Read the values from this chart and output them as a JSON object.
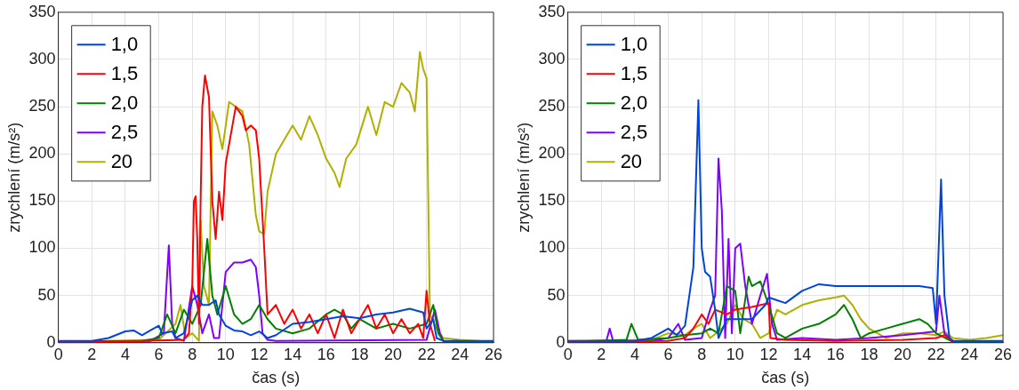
{
  "chart_data": [
    {
      "type": "line",
      "xlabel": "čas (s)",
      "ylabel": "zrychlení (m/s²)",
      "xlim": [
        0,
        26
      ],
      "xticks": [
        0,
        2,
        4,
        6,
        8,
        10,
        12,
        14,
        16,
        18,
        20,
        22,
        24,
        26
      ],
      "ylim": [
        0,
        350
      ],
      "yticks": [
        0,
        50,
        100,
        150,
        200,
        250,
        300,
        350
      ],
      "grid": true,
      "legend": "top left",
      "marker": "none",
      "line_style": "solid",
      "series": [
        {
          "name": "1,0",
          "color": "#0044dd",
          "x": [
            0,
            2,
            3,
            4,
            4.5,
            5,
            5.5,
            6,
            6.2,
            6.8,
            7,
            7.5,
            8,
            8.3,
            8.6,
            9,
            9.4,
            9.6,
            10,
            10.5,
            11,
            11.5,
            12,
            12.5,
            13,
            14,
            15,
            16,
            17,
            18,
            19,
            20,
            21,
            21.8,
            22,
            22.4,
            22.6,
            23,
            26
          ],
          "values": [
            2,
            2,
            5,
            12,
            13,
            8,
            13,
            18,
            10,
            12,
            5,
            10,
            45,
            50,
            40,
            40,
            45,
            30,
            18,
            13,
            12,
            8,
            12,
            5,
            8,
            20,
            22,
            25,
            28,
            26,
            30,
            32,
            36,
            32,
            15,
            25,
            5,
            2,
            2
          ]
        },
        {
          "name": "1,5",
          "color": "#ff0000",
          "x": [
            0,
            5,
            7.5,
            7.8,
            8,
            8.1,
            8.2,
            8.3,
            8.4,
            8.5,
            8.6,
            8.76,
            9,
            9.2,
            9.4,
            9.6,
            9.8,
            10,
            10.2,
            10.4,
            10.6,
            10.8,
            11,
            11.2,
            11.5,
            11.8,
            12,
            12.3,
            12.5,
            13,
            13.5,
            14,
            14.5,
            15,
            15.5,
            16,
            16.5,
            17,
            17.5,
            18,
            18.5,
            19,
            19.5,
            20,
            20.5,
            21,
            21.5,
            21.8,
            22,
            22.2,
            22.5
          ],
          "values": [
            1,
            2,
            3,
            10,
            60,
            150,
            155,
            110,
            20,
            150,
            250,
            283,
            260,
            150,
            110,
            160,
            130,
            190,
            210,
            230,
            250,
            245,
            240,
            225,
            230,
            225,
            195,
            100,
            30,
            40,
            20,
            35,
            15,
            30,
            10,
            30,
            5,
            35,
            10,
            25,
            40,
            15,
            30,
            10,
            25,
            10,
            20,
            5,
            55,
            20,
            2
          ]
        },
        {
          "name": "2,0",
          "color": "#008000",
          "x": [
            0,
            5,
            6,
            6.5,
            7,
            7.5,
            8,
            8.5,
            8.9,
            9.2,
            9.5,
            10,
            10.5,
            11,
            11.5,
            12,
            12.5,
            13,
            14,
            15,
            16,
            16.5,
            17,
            17.5,
            18,
            19,
            20,
            21,
            22,
            22.4,
            22.7,
            23,
            26
          ],
          "values": [
            1,
            2,
            5,
            30,
            10,
            35,
            20,
            40,
            110,
            50,
            30,
            60,
            30,
            20,
            25,
            40,
            25,
            15,
            10,
            15,
            30,
            35,
            30,
            15,
            25,
            15,
            20,
            15,
            20,
            40,
            10,
            2,
            1
          ]
        },
        {
          "name": "2,5",
          "color": "#7f00ff",
          "x": [
            0,
            5.5,
            6.3,
            6.6,
            6.8,
            7,
            7.5,
            8,
            8.3,
            8.6,
            9,
            9.3,
            9.6,
            10,
            10.5,
            11,
            11.5,
            11.8,
            12,
            12.2,
            12.5,
            13,
            22,
            22.5,
            22.8,
            23,
            26
          ],
          "values": [
            1,
            2,
            10,
            103,
            20,
            5,
            2,
            60,
            40,
            10,
            30,
            5,
            5,
            75,
            85,
            85,
            88,
            80,
            50,
            10,
            3,
            2,
            3,
            35,
            10,
            2,
            1
          ]
        },
        {
          "name": "20",
          "color": "#b0b000",
          "x": [
            0,
            6,
            7,
            7.3,
            7.6,
            8,
            8.4,
            8.5,
            8.7,
            9,
            9.2,
            9.5,
            9.8,
            10,
            10.2,
            10.6,
            11,
            11.4,
            11.8,
            12,
            12.3,
            12.5,
            13,
            13.5,
            14,
            14.5,
            15,
            15.5,
            16,
            16.5,
            16.8,
            17.2,
            17.8,
            18.5,
            19,
            19.5,
            20,
            20.5,
            21,
            21.3,
            21.6,
            21.8,
            22,
            22.2,
            22.6,
            23,
            24,
            26
          ],
          "values": [
            1,
            3,
            20,
            40,
            5,
            10,
            2,
            130,
            60,
            40,
            245,
            230,
            205,
            230,
            255,
            250,
            245,
            210,
            135,
            118,
            115,
            160,
            200,
            215,
            230,
            215,
            240,
            220,
            195,
            180,
            165,
            195,
            210,
            250,
            220,
            255,
            250,
            275,
            265,
            245,
            308,
            290,
            280,
            30,
            15,
            5,
            3,
            1
          ]
        }
      ]
    },
    {
      "type": "line",
      "xlabel": "čas (s)",
      "ylabel": "zrychlení (m/s²)",
      "xlim": [
        0,
        26
      ],
      "xticks": [
        0,
        2,
        4,
        6,
        8,
        10,
        12,
        14,
        16,
        18,
        20,
        22,
        24,
        26
      ],
      "ylim": [
        0,
        350
      ],
      "yticks": [
        0,
        50,
        100,
        150,
        200,
        250,
        300,
        350
      ],
      "grid": true,
      "legend": "top left",
      "marker": "none",
      "line_style": "solid",
      "series": [
        {
          "name": "1,0",
          "color": "#0044dd",
          "x": [
            0,
            4,
            5,
            6,
            6.5,
            7,
            7.5,
            7.8,
            8,
            8.2,
            8.5,
            8.8,
            9,
            9.5,
            10,
            11,
            11.8,
            12,
            12.5,
            13,
            14,
            15,
            16,
            17,
            18,
            19,
            20,
            21,
            21.8,
            22,
            22.3,
            22.5,
            22.8,
            23,
            26
          ],
          "values": [
            2,
            2,
            5,
            15,
            8,
            18,
            80,
            257,
            100,
            75,
            70,
            35,
            5,
            25,
            25,
            25,
            40,
            48,
            45,
            42,
            55,
            62,
            60,
            60,
            60,
            60,
            60,
            60,
            58,
            20,
            173,
            50,
            5,
            2,
            2
          ]
        },
        {
          "name": "1,5",
          "color": "#ff0000",
          "x": [
            0,
            6,
            7,
            7.5,
            8,
            8.4,
            8.8,
            9.5,
            10,
            11,
            12,
            12.1,
            13,
            16,
            20,
            22,
            22.5,
            23
          ],
          "values": [
            1,
            2,
            5,
            15,
            30,
            20,
            35,
            30,
            35,
            38,
            42,
            5,
            3,
            2,
            3,
            5,
            8,
            1
          ]
        },
        {
          "name": "2,0",
          "color": "#008000",
          "x": [
            0,
            3.5,
            3.8,
            4.2,
            6,
            7,
            8,
            8.5,
            9,
            9.5,
            10,
            10.3,
            10.8,
            11,
            11.5,
            12,
            12.5,
            13,
            14,
            15,
            16,
            16.5,
            17,
            17.5,
            18,
            19,
            20,
            21,
            21.5,
            22,
            23,
            26
          ],
          "values": [
            1,
            3,
            20,
            3,
            5,
            8,
            10,
            15,
            10,
            60,
            55,
            10,
            70,
            60,
            65,
            40,
            10,
            5,
            15,
            20,
            30,
            40,
            25,
            5,
            10,
            15,
            20,
            25,
            20,
            10,
            1,
            1
          ]
        },
        {
          "name": "2,5",
          "color": "#7f00ff",
          "x": [
            0,
            2.3,
            2.5,
            2.7,
            5,
            6,
            6.6,
            7,
            8,
            8.5,
            8.8,
            9,
            9.2,
            9.4,
            9.6,
            9.8,
            10,
            10.3,
            10.6,
            11,
            11.5,
            11.9,
            12.2,
            12.5,
            14,
            16,
            18,
            20,
            22,
            22.2,
            22.5,
            23,
            26
          ],
          "values": [
            1,
            2,
            15,
            2,
            2,
            5,
            20,
            3,
            5,
            35,
            50,
            195,
            140,
            5,
            110,
            10,
            100,
            105,
            60,
            20,
            50,
            73,
            20,
            3,
            5,
            3,
            5,
            8,
            12,
            50,
            10,
            2,
            1
          ]
        },
        {
          "name": "20",
          "color": "#b0b000",
          "x": [
            0,
            5,
            6,
            7,
            7.5,
            8,
            8.5,
            9,
            9.5,
            10,
            10.5,
            11,
            11.5,
            12,
            12.5,
            13,
            14,
            15,
            16,
            16.5,
            17,
            17.5,
            18,
            19,
            20,
            21,
            22,
            22.5,
            23,
            24,
            25,
            26
          ],
          "values": [
            2,
            3,
            10,
            8,
            15,
            20,
            5,
            12,
            20,
            40,
            25,
            20,
            5,
            10,
            35,
            30,
            40,
            45,
            48,
            50,
            40,
            25,
            15,
            5,
            10,
            10,
            8,
            12,
            5,
            3,
            5,
            8
          ]
        }
      ]
    }
  ]
}
